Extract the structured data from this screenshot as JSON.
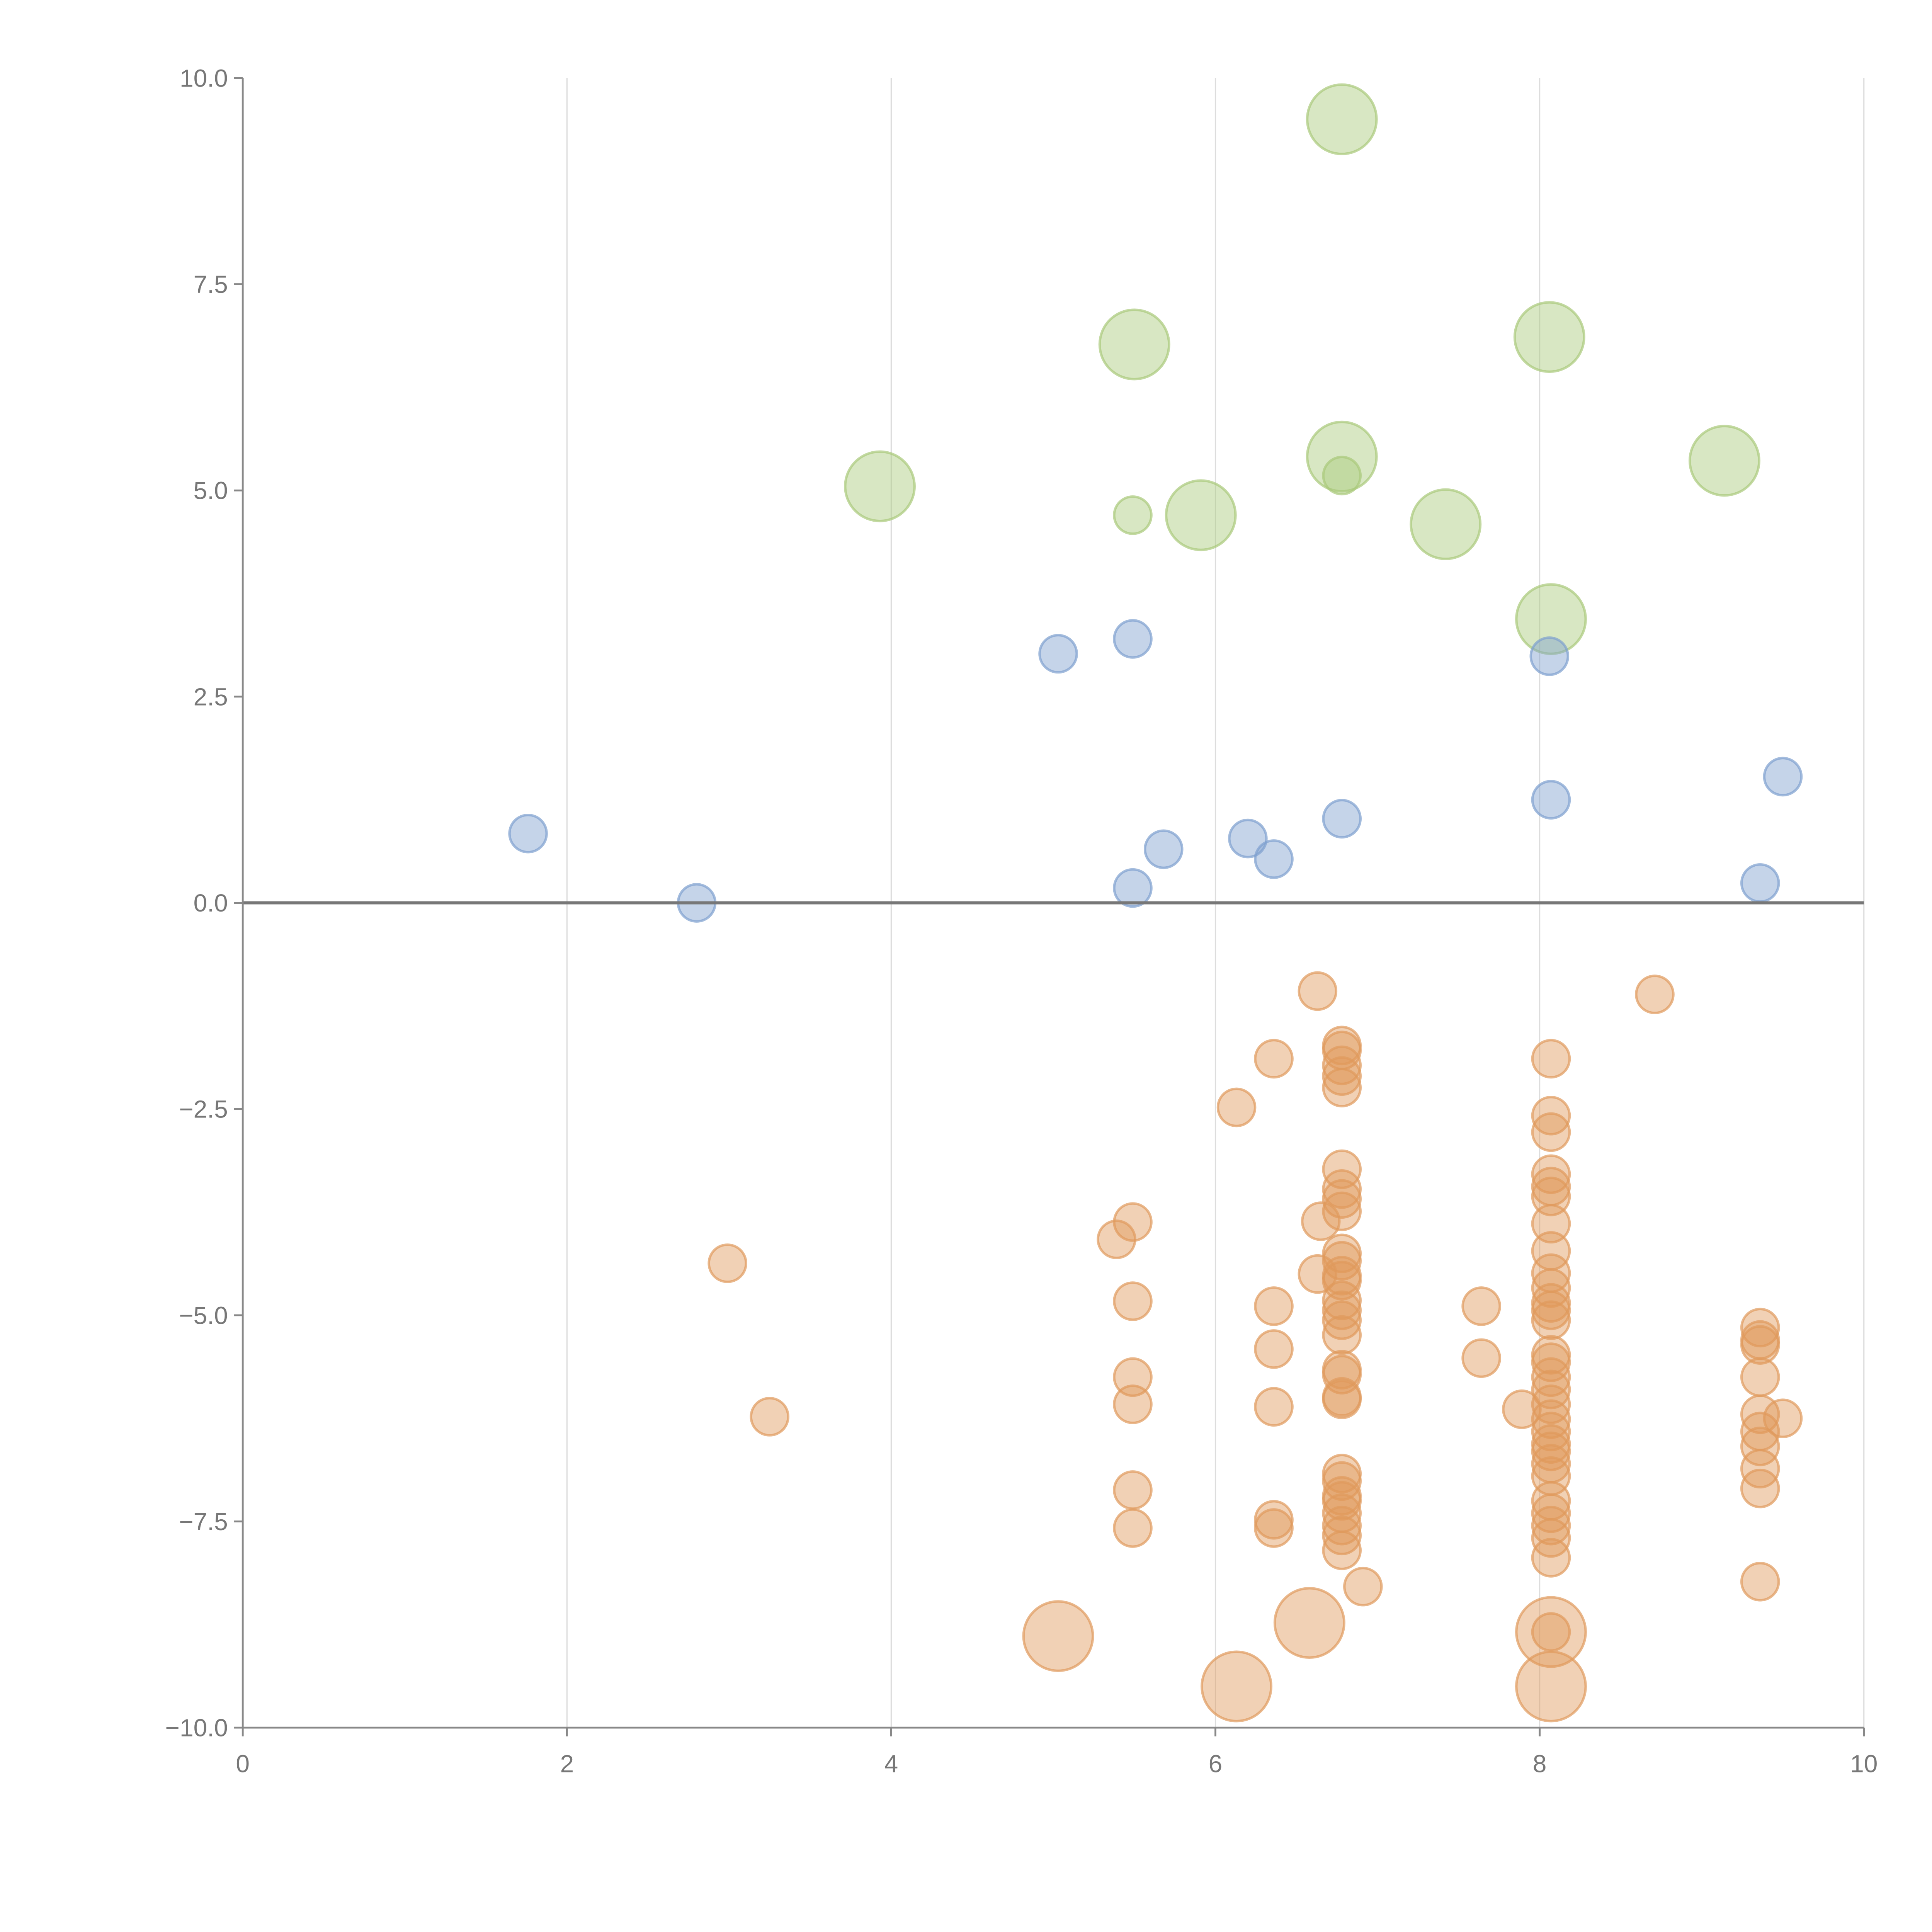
{
  "chart_data": {
    "type": "scatter",
    "title": "",
    "xlabel": "",
    "ylabel": "",
    "xlim": [
      0,
      10
    ],
    "ylim": [
      -10,
      10
    ],
    "grid": "vertical",
    "x_ticks": [
      "0",
      "2",
      "4",
      "6",
      "8",
      "10"
    ],
    "x_tick_values": [
      0,
      2,
      4,
      6,
      8,
      10
    ],
    "y_ticks": [
      "10.0",
      "7.5",
      "5.0",
      "2.5",
      "0.0",
      "−2.5",
      "−5.0",
      "−7.5",
      "−10.0"
    ],
    "y_tick_values": [
      10,
      7.5,
      5,
      2.5,
      0,
      -2.5,
      -5,
      -7.5,
      -10
    ],
    "size_note": "third value per point: 1 = small marker, 2 = large marker",
    "series": [
      {
        "name": "green",
        "color": "#a9c97a",
        "points": [
          [
            6.78,
            9.5,
            2
          ],
          [
            5.5,
            6.77,
            2
          ],
          [
            8.06,
            6.86,
            2
          ],
          [
            6.78,
            5.41,
            2
          ],
          [
            6.78,
            5.18,
            1
          ],
          [
            3.93,
            5.05,
            2
          ],
          [
            5.49,
            4.7,
            1
          ],
          [
            5.91,
            4.7,
            2
          ],
          [
            7.42,
            4.59,
            2
          ],
          [
            9.14,
            5.36,
            2
          ],
          [
            8.07,
            3.44,
            2
          ]
        ]
      },
      {
        "name": "blue",
        "color": "#7ea0cf",
        "points": [
          [
            1.76,
            0.84,
            1
          ],
          [
            2.8,
            0.0,
            1
          ],
          [
            5.03,
            3.02,
            1
          ],
          [
            5.49,
            3.2,
            1
          ],
          [
            8.06,
            2.99,
            1
          ],
          [
            9.5,
            1.53,
            1
          ],
          [
            8.07,
            1.25,
            1
          ],
          [
            6.78,
            1.02,
            1
          ],
          [
            5.68,
            0.65,
            1
          ],
          [
            6.2,
            0.78,
            1
          ],
          [
            6.36,
            0.53,
            1
          ],
          [
            5.49,
            0.18,
            1
          ],
          [
            9.36,
            0.24,
            1
          ]
        ]
      },
      {
        "name": "orange",
        "color": "#e09a5c",
        "points": [
          [
            6.78,
            -1.73,
            1
          ],
          [
            6.78,
            -1.79,
            1
          ],
          [
            6.78,
            -1.97,
            1
          ],
          [
            6.78,
            -2.1,
            1
          ],
          [
            6.78,
            -2.24,
            1
          ],
          [
            6.78,
            -3.23,
            1
          ],
          [
            6.78,
            -3.47,
            1
          ],
          [
            6.78,
            -3.59,
            1
          ],
          [
            6.78,
            -3.74,
            1
          ],
          [
            6.78,
            -4.25,
            1
          ],
          [
            6.78,
            -4.34,
            1
          ],
          [
            6.78,
            -4.52,
            1
          ],
          [
            6.78,
            -4.58,
            1
          ],
          [
            6.78,
            -4.82,
            1
          ],
          [
            6.78,
            -4.94,
            1
          ],
          [
            6.78,
            -5.06,
            1
          ],
          [
            6.78,
            -5.24,
            1
          ],
          [
            6.78,
            -5.66,
            1
          ],
          [
            6.78,
            -5.72,
            1
          ],
          [
            6.78,
            -5.99,
            1
          ],
          [
            6.78,
            -6.02,
            1
          ],
          [
            6.78,
            -6.92,
            1
          ],
          [
            6.78,
            -7.01,
            1
          ],
          [
            6.78,
            -7.19,
            1
          ],
          [
            6.78,
            -7.25,
            1
          ],
          [
            6.78,
            -7.4,
            1
          ],
          [
            6.78,
            -7.55,
            1
          ],
          [
            6.78,
            -7.67,
            1
          ],
          [
            6.78,
            -7.85,
            1
          ],
          [
            8.07,
            -1.89,
            1
          ],
          [
            8.07,
            -2.58,
            1
          ],
          [
            8.07,
            -2.78,
            1
          ],
          [
            8.07,
            -3.29,
            1
          ],
          [
            8.07,
            -3.44,
            1
          ],
          [
            8.07,
            -3.56,
            1
          ],
          [
            8.07,
            -3.89,
            1
          ],
          [
            8.07,
            -4.22,
            1
          ],
          [
            8.07,
            -4.49,
            1
          ],
          [
            8.07,
            -4.67,
            1
          ],
          [
            8.07,
            -4.85,
            1
          ],
          [
            8.07,
            -4.94,
            1
          ],
          [
            8.07,
            -5.06,
            1
          ],
          [
            8.07,
            -5.48,
            1
          ],
          [
            8.07,
            -5.57,
            1
          ],
          [
            8.07,
            -5.75,
            1
          ],
          [
            8.07,
            -5.9,
            1
          ],
          [
            8.07,
            -6.08,
            1
          ],
          [
            8.07,
            -6.26,
            1
          ],
          [
            8.07,
            -6.41,
            1
          ],
          [
            8.07,
            -6.56,
            1
          ],
          [
            8.07,
            -6.65,
            1
          ],
          [
            8.07,
            -6.8,
            1
          ],
          [
            8.07,
            -6.95,
            1
          ],
          [
            8.07,
            -7.25,
            1
          ],
          [
            8.07,
            -7.4,
            1
          ],
          [
            8.07,
            -7.55,
            1
          ],
          [
            8.07,
            -7.7,
            1
          ],
          [
            8.07,
            -7.94,
            1
          ],
          [
            8.07,
            -8.84,
            1
          ],
          [
            8.07,
            -8.84,
            2
          ],
          [
            8.07,
            -9.5,
            2
          ],
          [
            9.36,
            -5.15,
            1
          ],
          [
            9.36,
            -5.3,
            1
          ],
          [
            9.36,
            -5.36,
            1
          ],
          [
            9.36,
            -5.75,
            1
          ],
          [
            9.36,
            -6.2,
            1
          ],
          [
            9.36,
            -6.41,
            1
          ],
          [
            9.36,
            -6.59,
            1
          ],
          [
            9.36,
            -6.86,
            1
          ],
          [
            9.36,
            -7.1,
            1
          ],
          [
            9.36,
            -8.23,
            1
          ],
          [
            9.5,
            -6.25,
            1
          ],
          [
            5.49,
            -3.87,
            1
          ],
          [
            5.49,
            -4.83,
            1
          ],
          [
            5.49,
            -5.75,
            1
          ],
          [
            5.49,
            -6.08,
            1
          ],
          [
            5.49,
            -7.12,
            1
          ],
          [
            5.49,
            -7.58,
            1
          ],
          [
            5.39,
            -4.08,
            1
          ],
          [
            6.36,
            -1.89,
            1
          ],
          [
            6.36,
            -4.89,
            1
          ],
          [
            6.36,
            -5.41,
            1
          ],
          [
            6.36,
            -6.11,
            1
          ],
          [
            6.36,
            -7.48,
            1
          ],
          [
            6.36,
            -7.58,
            1
          ],
          [
            6.63,
            -1.07,
            1
          ],
          [
            8.71,
            -1.11,
            1
          ],
          [
            6.13,
            -2.48,
            1
          ],
          [
            6.65,
            -3.86,
            1
          ],
          [
            6.63,
            -4.5,
            1
          ],
          [
            2.99,
            -4.37,
            1
          ],
          [
            3.25,
            -6.23,
            1
          ],
          [
            7.64,
            -4.89,
            1
          ],
          [
            7.64,
            -5.52,
            1
          ],
          [
            7.89,
            -6.14,
            1
          ],
          [
            6.91,
            -8.29,
            1
          ],
          [
            5.03,
            -8.89,
            2
          ],
          [
            6.58,
            -8.73,
            2
          ],
          [
            6.13,
            -9.5,
            2
          ]
        ]
      }
    ]
  }
}
